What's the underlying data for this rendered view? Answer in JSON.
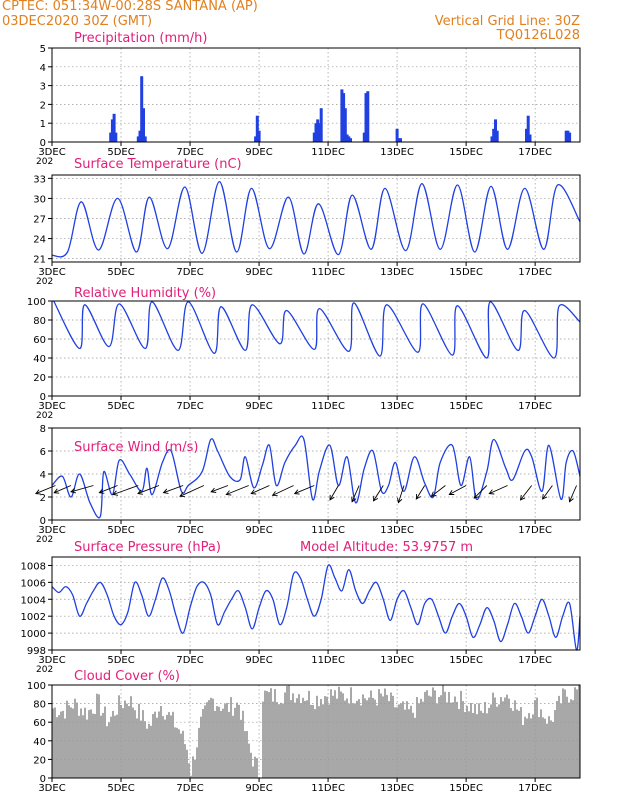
{
  "header": {
    "line1": "CPTEC:   051:34W-00:28S   SANTANA (AP)",
    "line2": "03DEC2020 30Z (GMT)",
    "grid_note": "Vertical Grid Line: 30Z",
    "code": "TQ0126L028"
  },
  "colors": {
    "header": "#e08020",
    "title": "#e0207a",
    "series": "#2040e0",
    "cloud": "#a8a8a8",
    "grid": "#999999"
  },
  "x_axis": {
    "tick_labels": [
      "3DEC",
      "5DEC",
      "7DEC",
      "9DEC",
      "11DEC",
      "13DEC",
      "15DEC",
      "17DEC"
    ],
    "tick_days": [
      0,
      2,
      4,
      6,
      8,
      10,
      12,
      14
    ],
    "day_range": [
      0,
      15.3
    ],
    "overlap_text": "202"
  },
  "chart_data": [
    {
      "id": "precip",
      "type": "bar",
      "title": "Precipitation (mm/h)",
      "ylim": [
        0,
        5
      ],
      "yticks": [
        0,
        1,
        2,
        3,
        4,
        5
      ],
      "x": [
        1.7,
        1.75,
        1.8,
        1.85,
        2.5,
        2.55,
        2.6,
        2.65,
        2.7,
        5.9,
        5.95,
        6.0,
        7.6,
        7.65,
        7.7,
        7.75,
        7.8,
        8.4,
        8.45,
        8.5,
        8.55,
        8.6,
        8.65,
        9.05,
        9.1,
        9.15,
        10.0,
        10.05,
        10.1,
        12.75,
        12.8,
        12.85,
        12.9,
        13.75,
        13.8,
        13.85,
        14.9,
        14.95,
        15.0
      ],
      "values": [
        0.5,
        1.2,
        1.5,
        0.5,
        0.3,
        0.6,
        3.5,
        1.8,
        0.3,
        0.3,
        1.4,
        0.6,
        0.5,
        1.0,
        1.2,
        1.0,
        1.8,
        2.8,
        2.6,
        1.8,
        0.4,
        0.3,
        0.2,
        0.5,
        2.6,
        2.7,
        0.7,
        0.2,
        0.2,
        0.3,
        0.7,
        1.2,
        0.6,
        0.7,
        1.4,
        0.4,
        0.6,
        0.6,
        0.5
      ]
    },
    {
      "id": "temp",
      "type": "line",
      "title": "Surface Temperature (nC)",
      "ylim": [
        20.5,
        33.5
      ],
      "yticks": [
        21,
        24,
        27,
        30,
        33
      ],
      "max_x": [
        0.85,
        1.9,
        2.82,
        3.85,
        4.85,
        5.78,
        6.85,
        7.72,
        8.7,
        9.65,
        10.72,
        11.75,
        12.72,
        13.7,
        14.65
      ],
      "max_y": [
        29.5,
        30.0,
        30.2,
        31.7,
        32.5,
        31.5,
        30.2,
        29.2,
        30.5,
        31.5,
        32.2,
        32.0,
        31.8,
        31.5,
        32.0
      ],
      "min_x": [
        0.45,
        1.35,
        2.45,
        3.35,
        4.35,
        5.35,
        6.3,
        7.3,
        8.3,
        9.25,
        10.25,
        11.25,
        12.25,
        13.2,
        14.25
      ],
      "min_y": [
        22.0,
        22.3,
        22.0,
        22.5,
        21.8,
        22.0,
        22.5,
        21.7,
        21.6,
        22.4,
        22.2,
        22.4,
        22.0,
        22.4,
        22.4
      ],
      "start": [
        0,
        21.5
      ],
      "end": [
        15.3,
        26.5
      ]
    },
    {
      "id": "rh",
      "type": "line",
      "title": "Relative Humidity (%)",
      "ylim": [
        0,
        100
      ],
      "yticks": [
        0,
        20,
        40,
        60,
        80,
        100
      ],
      "max_x": [
        0.05,
        0.95,
        1.95,
        2.9,
        3.95,
        4.9,
        5.8,
        6.8,
        7.75,
        8.75,
        9.7,
        10.75,
        11.75,
        12.7,
        13.7,
        14.7
      ],
      "max_y": [
        100,
        96,
        97,
        99,
        99,
        94,
        96,
        90,
        92,
        98,
        96,
        97,
        95,
        99,
        90,
        95
      ],
      "min_x": [
        0.8,
        1.65,
        2.7,
        3.65,
        4.7,
        5.6,
        6.6,
        7.6,
        8.6,
        9.5,
        10.6,
        11.6,
        12.6,
        13.5,
        14.55
      ],
      "min_y": [
        50,
        52,
        50,
        48,
        45,
        48,
        55,
        49,
        47,
        42,
        46,
        43,
        40,
        48,
        40
      ],
      "end": [
        15.3,
        78
      ]
    },
    {
      "id": "wind",
      "type": "line",
      "title": "Surface Wind (m/s)",
      "ylim": [
        0,
        8
      ],
      "yticks": [
        0,
        2,
        4,
        6,
        8
      ],
      "x": [
        0.0,
        0.3,
        0.55,
        0.8,
        1.1,
        1.4,
        1.5,
        1.75,
        1.95,
        2.25,
        2.6,
        2.75,
        2.9,
        3.2,
        3.45,
        3.75,
        3.95,
        4.35,
        4.6,
        4.8,
        5.15,
        5.45,
        5.6,
        5.85,
        6.1,
        6.3,
        6.5,
        6.75,
        7.05,
        7.3,
        7.55,
        7.75,
        8.05,
        8.3,
        8.55,
        8.8,
        9.05,
        9.3,
        9.55,
        9.75,
        9.95,
        10.2,
        10.5,
        10.8,
        11.05,
        11.25,
        11.6,
        11.85,
        12.1,
        12.3,
        12.6,
        12.8,
        13.15,
        13.35,
        13.7,
        13.9,
        14.2,
        14.4,
        14.75,
        14.9,
        15.1,
        15.3
      ],
      "y": [
        3.0,
        3.8,
        2.0,
        4.0,
        1.5,
        0.3,
        4.2,
        2.2,
        5.2,
        4.0,
        2.5,
        4.5,
        2.2,
        5.0,
        6.0,
        2.5,
        3.0,
        4.2,
        7.0,
        6.0,
        3.8,
        3.5,
        5.5,
        2.8,
        4.8,
        6.5,
        3.0,
        5.0,
        6.5,
        7.0,
        1.8,
        4.3,
        6.5,
        3.0,
        5.5,
        1.5,
        4.5,
        6.0,
        2.5,
        3.0,
        5.0,
        2.5,
        5.5,
        3.2,
        2.0,
        5.0,
        6.5,
        3.0,
        5.5,
        1.8,
        4.2,
        7.0,
        4.5,
        3.5,
        6.0,
        5.5,
        2.5,
        6.5,
        1.8,
        5.0,
        6.0,
        3.8
      ],
      "arrows_x": [
        0.1,
        0.55,
        1.2,
        1.9,
        2.5,
        3.1,
        3.8,
        4.4,
        5.1,
        5.7,
        6.3,
        7.0,
        7.6,
        8.3,
        8.9,
        9.6,
        10.2,
        10.8,
        11.4,
        12.0,
        12.6,
        13.2,
        13.9,
        14.5,
        15.2
      ],
      "arrow_dx": [
        -1.4,
        -1.2,
        -1.6,
        -1.3,
        -1.8,
        -1.5,
        -1.4,
        -1.7,
        -1.2,
        -1.6,
        -1.3,
        -1.5,
        -1.4,
        -0.6,
        -0.5,
        -0.7,
        -0.4,
        -0.6,
        -1.0,
        -1.2,
        -0.9,
        -1.3,
        -0.8,
        -0.7,
        -0.5
      ],
      "arrow_dy": [
        0.9,
        0.8,
        0.7,
        0.8,
        1.0,
        0.9,
        0.8,
        1.2,
        0.7,
        1.0,
        0.9,
        1.1,
        0.9,
        1.6,
        1.8,
        1.7,
        1.9,
        1.5,
        1.2,
        1.0,
        1.4,
        0.9,
        1.6,
        1.5,
        1.8
      ]
    },
    {
      "id": "pres",
      "type": "line",
      "title": "Surface Pressure (hPa)",
      "altitude_note": "Model Altitude: 53.9757 m",
      "ylim": [
        998,
        1009
      ],
      "yticks": [
        998,
        1000,
        1002,
        1004,
        1006,
        1008
      ],
      "x": [
        0.0,
        0.2,
        0.4,
        0.6,
        0.8,
        1.0,
        1.2,
        1.4,
        1.6,
        1.8,
        2.0,
        2.2,
        2.4,
        2.6,
        2.8,
        3.0,
        3.2,
        3.4,
        3.6,
        3.8,
        4.0,
        4.2,
        4.4,
        4.6,
        4.8,
        5.0,
        5.2,
        5.4,
        5.6,
        5.8,
        6.0,
        6.2,
        6.4,
        6.6,
        6.8,
        7.0,
        7.2,
        7.4,
        7.6,
        7.8,
        8.0,
        8.2,
        8.4,
        8.6,
        8.8,
        9.0,
        9.2,
        9.4,
        9.6,
        9.8,
        10.0,
        10.2,
        10.4,
        10.6,
        10.8,
        11.0,
        11.2,
        11.4,
        11.6,
        11.8,
        12.0,
        12.2,
        12.4,
        12.6,
        12.8,
        13.0,
        13.2,
        13.4,
        13.6,
        13.8,
        14.0,
        14.2,
        14.4,
        14.6,
        14.8,
        15.0,
        15.2,
        15.3
      ],
      "y": [
        1005.5,
        1004.8,
        1005.5,
        1004.5,
        1002,
        1003.5,
        1005,
        1006,
        1004.5,
        1002,
        1001,
        1002.5,
        1006,
        1004.5,
        1002,
        1004,
        1006.5,
        1005,
        1002,
        1000,
        1003,
        1005.5,
        1006,
        1004.5,
        1001,
        1002.5,
        1004,
        1005,
        1003,
        1000.5,
        1003,
        1005,
        1004,
        1001,
        1003,
        1007,
        1006.5,
        1004,
        1002,
        1004,
        1008,
        1006.5,
        1005,
        1007.5,
        1005,
        1003.5,
        1005,
        1006,
        1004,
        1001.5,
        1004,
        1005,
        1003,
        1001,
        1003.5,
        1004,
        1002,
        1000,
        1002,
        1003.5,
        1002,
        999.5,
        1001,
        1003,
        1001.5,
        999,
        1001,
        1003.5,
        1002,
        1000,
        1002,
        1004,
        1002,
        999.5,
        1002,
        1003.5,
        998,
        1002
      ]
    },
    {
      "id": "cloud",
      "type": "area",
      "title": "Cloud Cover (%)",
      "ylim": [
        0,
        100
      ],
      "yticks": [
        0,
        20,
        40,
        60,
        80,
        100
      ]
    }
  ]
}
